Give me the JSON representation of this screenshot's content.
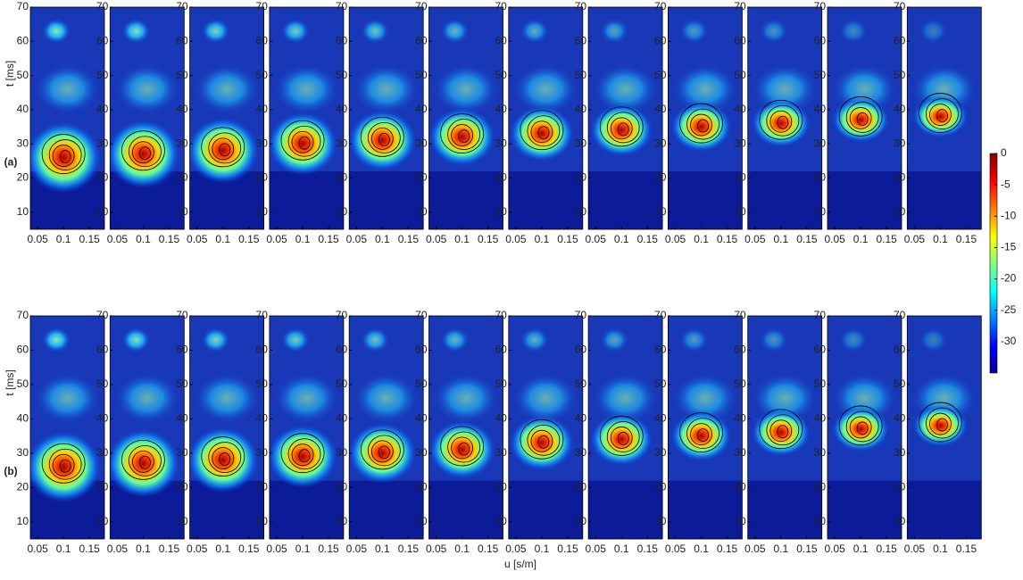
{
  "chart_data": {
    "type": "heatmap-panels",
    "xlabel": "u [s/m]",
    "ylabel": "t [ms]",
    "xlim": [
      0.036,
      0.179
    ],
    "xticks": [
      {
        "value": 0.05,
        "label": "0.05"
      },
      0.1,
      0.15
    ],
    "ylim": [
      5,
      70
    ],
    "yticks": [
      10,
      20,
      30,
      40,
      50,
      60,
      70
    ],
    "colorbar": {
      "lim": [
        -35,
        0
      ],
      "ticks": [
        0,
        -5,
        -10,
        -15,
        -20,
        -25,
        -30
      ]
    },
    "rows": [
      {
        "label": "(a)",
        "peak_t": [
          26,
          27,
          28,
          30,
          31,
          32,
          33,
          34,
          35,
          36,
          37,
          38
        ],
        "peak_u": [
          0.1,
          0.1,
          0.1,
          0.1,
          0.1,
          0.1,
          0.1,
          0.1,
          0.1,
          0.1,
          0.1,
          0.1
        ]
      },
      {
        "label": "(b)",
        "peak_t": [
          26,
          27,
          28,
          29,
          30,
          31,
          33,
          34,
          35,
          36,
          37,
          38
        ],
        "peak_u": [
          0.1,
          0.1,
          0.1,
          0.1,
          0.1,
          0.1,
          0.1,
          0.1,
          0.1,
          0.1,
          0.1,
          0.1
        ]
      }
    ]
  }
}
